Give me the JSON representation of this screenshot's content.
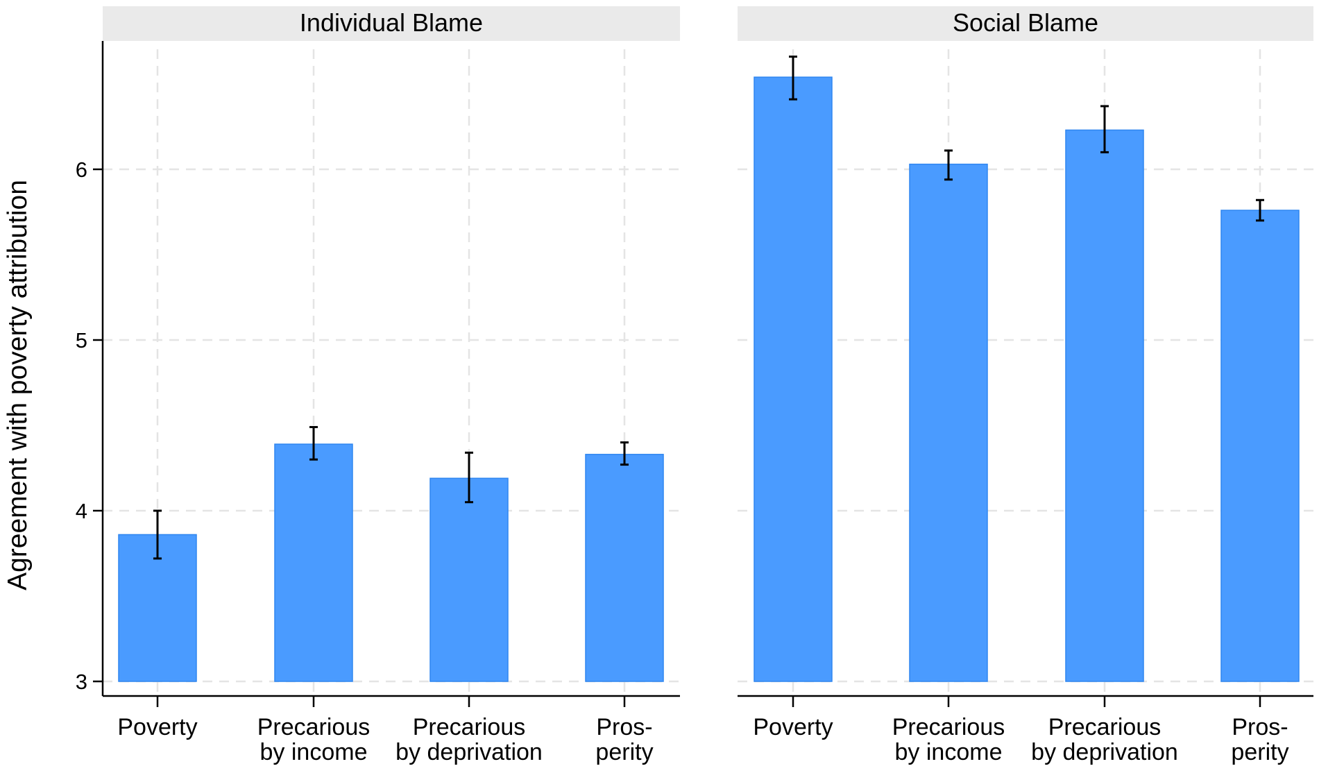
{
  "chart_data": {
    "type": "bar",
    "ylabel": "Agreement with poverty attribution",
    "ylim": [
      3,
      6.75
    ],
    "yticks": [
      3,
      4,
      5,
      6
    ],
    "grid": true,
    "bar_color": "#4a9bff",
    "bar_edge_color": "#2f86f0",
    "panel_header_color": "#eaeaea",
    "grid_color": "#e4e4e4",
    "categories": [
      [
        "Poverty"
      ],
      [
        "Precarious",
        "by income"
      ],
      [
        "Precarious",
        "by deprivation"
      ],
      [
        "Pros-",
        "perity"
      ]
    ],
    "panels": [
      {
        "title": "Individual Blame",
        "values": [
          3.86,
          4.39,
          4.19,
          4.33
        ],
        "ci_low": [
          3.72,
          4.3,
          4.05,
          4.27
        ],
        "ci_high": [
          4.0,
          4.49,
          4.34,
          4.4
        ]
      },
      {
        "title": "Social Blame",
        "values": [
          6.54,
          6.03,
          6.23,
          5.76
        ],
        "ci_low": [
          6.41,
          5.94,
          6.1,
          5.7
        ],
        "ci_high": [
          6.66,
          6.11,
          6.37,
          5.82
        ]
      }
    ]
  }
}
